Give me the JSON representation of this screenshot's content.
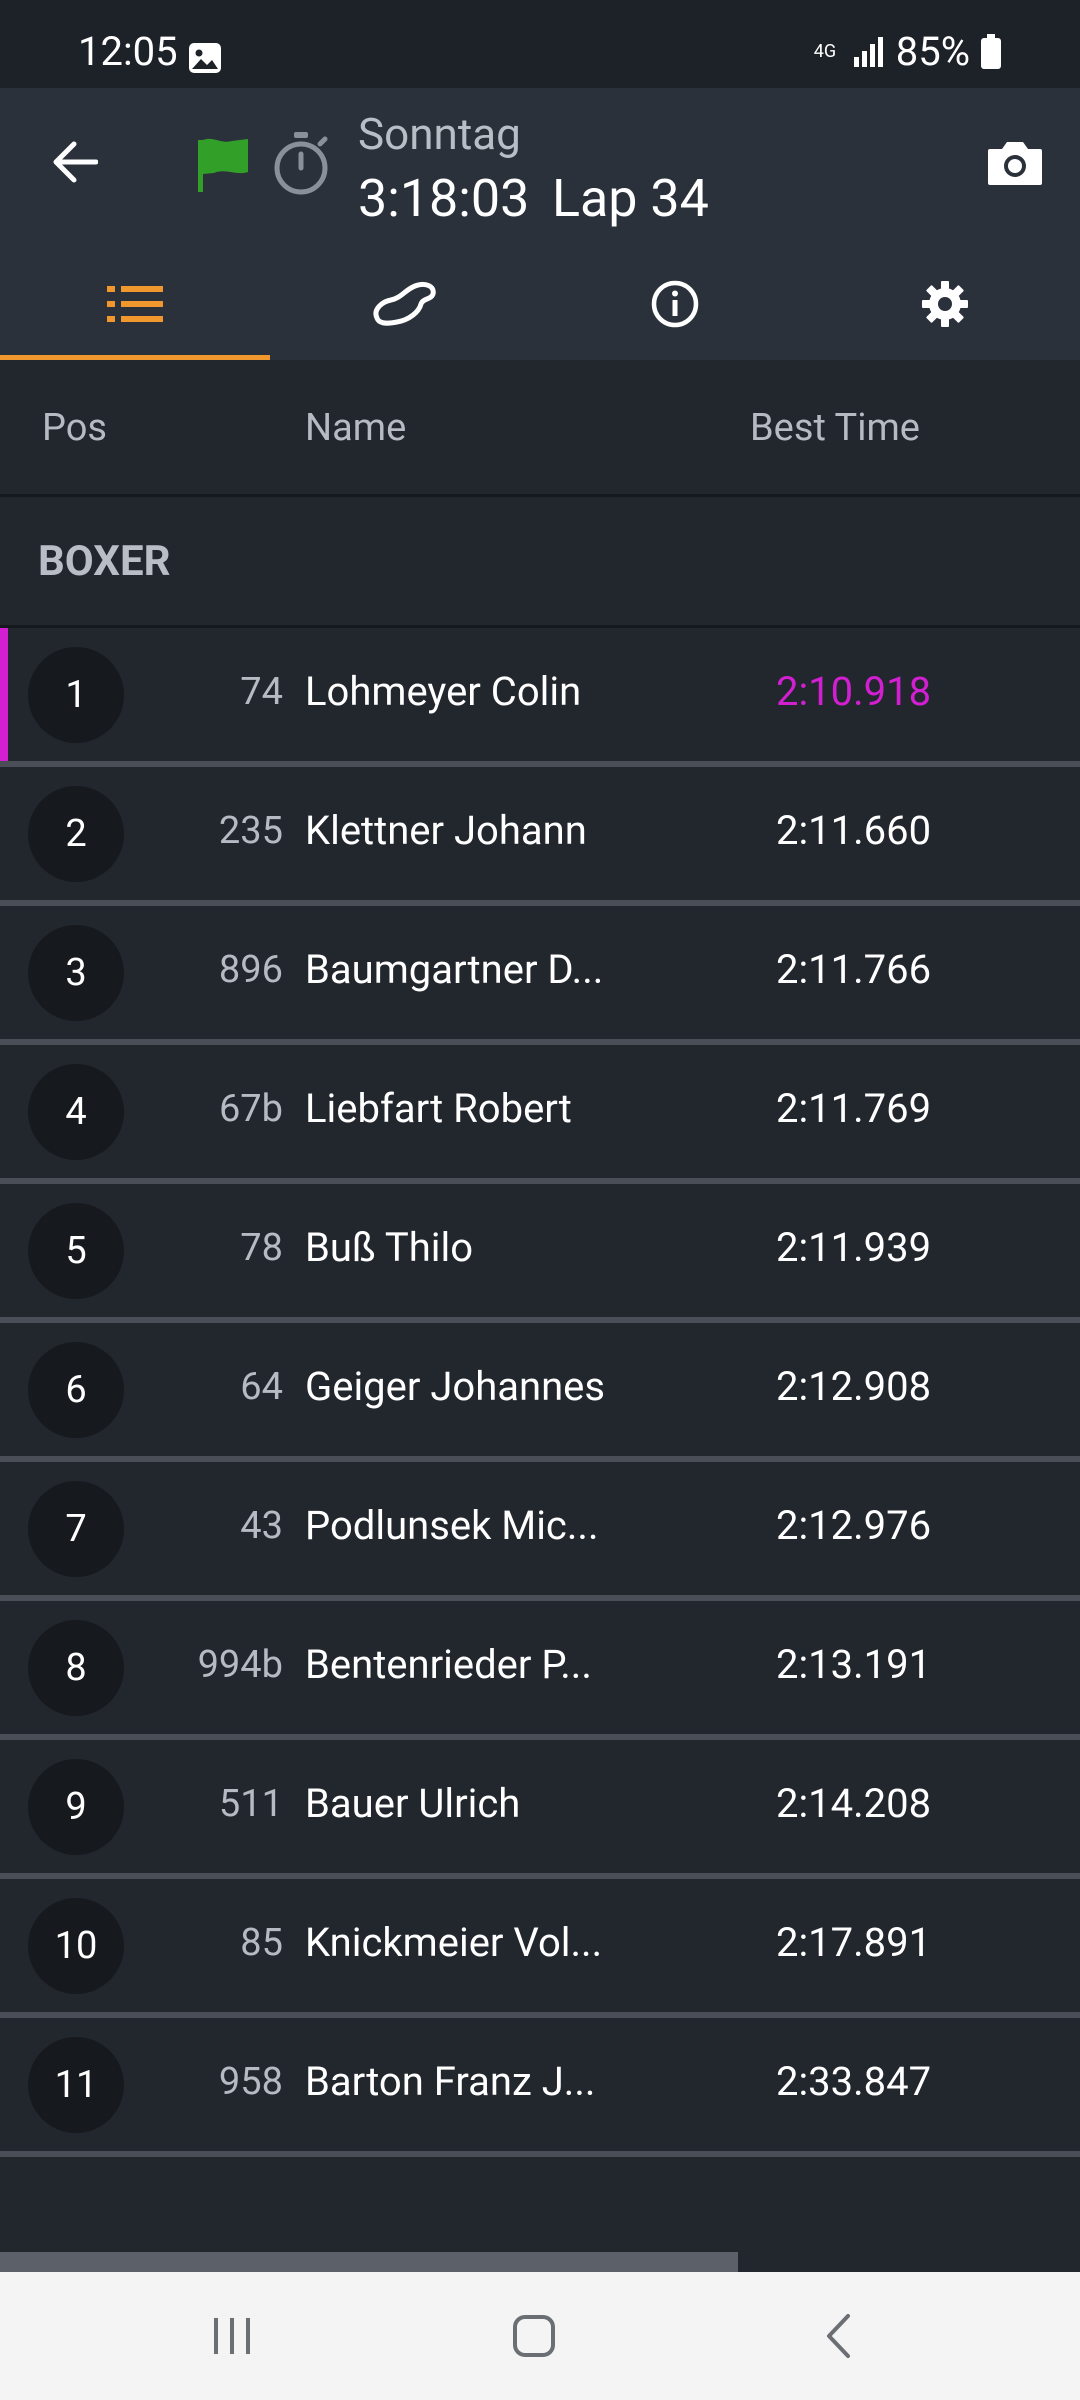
{
  "status_bar": {
    "time": "12:05",
    "network": "4G",
    "battery": "85%"
  },
  "header": {
    "session_name": "Sonntag",
    "session_time": "3:18:03",
    "lap": "Lap 34",
    "flag_color": "#32a028"
  },
  "tabs": [
    {
      "name": "classification",
      "icon": "list-icon",
      "active": true
    },
    {
      "name": "track",
      "icon": "track-icon",
      "active": false
    },
    {
      "name": "info",
      "icon": "info-icon",
      "active": false
    },
    {
      "name": "settings",
      "icon": "gear-icon",
      "active": false
    }
  ],
  "columns": {
    "pos": "Pos",
    "name": "Name",
    "best_time": "Best Time"
  },
  "group": "BOXER",
  "accent_colors": {
    "tab_indicator": "#f0982e",
    "fastest": "#d21fd2"
  },
  "rows": [
    {
      "pos": "1",
      "number": "74",
      "name": "Lohmeyer Colin",
      "best": "2:10.918",
      "fastest": true
    },
    {
      "pos": "2",
      "number": "235",
      "name": "Klettner Johann",
      "best": "2:11.660"
    },
    {
      "pos": "3",
      "number": "896",
      "name": "Baumgartner D...",
      "best": "2:11.766"
    },
    {
      "pos": "4",
      "number": "67b",
      "name": "Liebfart Robert",
      "best": "2:11.769"
    },
    {
      "pos": "5",
      "number": "78",
      "name": "Buß Thilo",
      "best": "2:11.939"
    },
    {
      "pos": "6",
      "number": "64",
      "name": "Geiger Johannes",
      "best": "2:12.908"
    },
    {
      "pos": "7",
      "number": "43",
      "name": "Podlunsek Mic...",
      "best": "2:12.976"
    },
    {
      "pos": "8",
      "number": "994b",
      "name": "Bentenrieder P...",
      "best": "2:13.191"
    },
    {
      "pos": "9",
      "number": "511",
      "name": "Bauer Ulrich",
      "best": "2:14.208"
    },
    {
      "pos": "10",
      "number": "85",
      "name": "Knickmeier Vol...",
      "best": "2:17.891"
    },
    {
      "pos": "11",
      "number": "958",
      "name": "Barton Franz J...",
      "best": "2:33.847"
    }
  ]
}
